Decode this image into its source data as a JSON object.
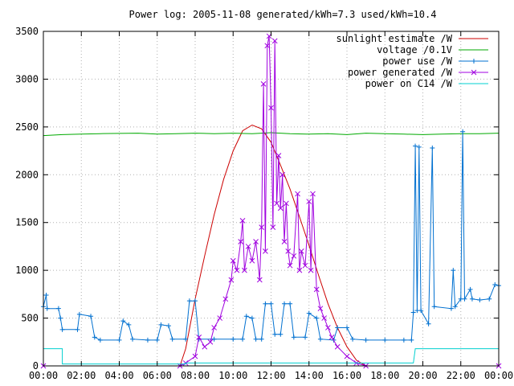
{
  "chart_data": {
    "type": "line",
    "title": "Power log: 2005-11-08 generated/kWh=7.3 used/kWh=10.4",
    "x_axis": {
      "unit": "hours",
      "range": [
        0,
        24
      ],
      "ticks": [
        0,
        2,
        4,
        6,
        8,
        10,
        12,
        14,
        16,
        18,
        20,
        22,
        24
      ],
      "tick_labels": [
        "00:00",
        "02:00",
        "04:00",
        "06:00",
        "08:00",
        "10:00",
        "12:00",
        "14:00",
        "16:00",
        "18:00",
        "20:00",
        "22:00",
        "00:00"
      ]
    },
    "y_axis": {
      "range": [
        0,
        3500
      ],
      "ticks": [
        0,
        500,
        1000,
        1500,
        2000,
        2500,
        3000,
        3500
      ],
      "tick_labels": [
        "0",
        "500",
        "1000",
        "1500",
        "2000",
        "2500",
        "3000",
        "3500"
      ]
    },
    "grid": true,
    "legend_position": "top-right",
    "series": [
      {
        "name": "sunlight estimate /W",
        "color": "#cc0000",
        "marker": "none",
        "points": [
          [
            7.2,
            0
          ],
          [
            7.5,
            180
          ],
          [
            8,
            700
          ],
          [
            8.5,
            1150
          ],
          [
            9,
            1580
          ],
          [
            9.5,
            1950
          ],
          [
            10,
            2250
          ],
          [
            10.5,
            2460
          ],
          [
            11,
            2520
          ],
          [
            11.5,
            2480
          ],
          [
            12,
            2340
          ],
          [
            12.5,
            2100
          ],
          [
            13,
            1850
          ],
          [
            13.5,
            1560
          ],
          [
            14,
            1260
          ],
          [
            14.5,
            950
          ],
          [
            15,
            650
          ],
          [
            15.5,
            400
          ],
          [
            16,
            200
          ],
          [
            16.5,
            60
          ],
          [
            17,
            0
          ]
        ]
      },
      {
        "name": "voltage /0.1V",
        "color": "#00aa00",
        "marker": "none",
        "points": [
          [
            0,
            2410
          ],
          [
            1,
            2420
          ],
          [
            2,
            2425
          ],
          [
            3,
            2430
          ],
          [
            4,
            2432
          ],
          [
            5,
            2435
          ],
          [
            6,
            2425
          ],
          [
            7,
            2430
          ],
          [
            8,
            2435
          ],
          [
            9,
            2430
          ],
          [
            10,
            2435
          ],
          [
            11,
            2430
          ],
          [
            12,
            2440
          ],
          [
            13,
            2430
          ],
          [
            14,
            2425
          ],
          [
            15,
            2430
          ],
          [
            16,
            2420
          ],
          [
            17,
            2435
          ],
          [
            18,
            2430
          ],
          [
            19,
            2425
          ],
          [
            20,
            2420
          ],
          [
            21,
            2425
          ],
          [
            22,
            2430
          ],
          [
            23,
            2430
          ],
          [
            24,
            2435
          ]
        ]
      },
      {
        "name": "power use /W",
        "color": "#0070d0",
        "marker": "plus",
        "points": [
          [
            0,
            620
          ],
          [
            0.15,
            740
          ],
          [
            0.2,
            600
          ],
          [
            0.8,
            600
          ],
          [
            0.9,
            500
          ],
          [
            1,
            380
          ],
          [
            1.8,
            380
          ],
          [
            1.9,
            540
          ],
          [
            2.5,
            520
          ],
          [
            2.7,
            300
          ],
          [
            3,
            270
          ],
          [
            4,
            270
          ],
          [
            4.2,
            470
          ],
          [
            4.5,
            430
          ],
          [
            4.7,
            280
          ],
          [
            5.5,
            270
          ],
          [
            6,
            270
          ],
          [
            6.2,
            430
          ],
          [
            6.6,
            420
          ],
          [
            6.8,
            280
          ],
          [
            7.5,
            280
          ],
          [
            7.7,
            680
          ],
          [
            8,
            680
          ],
          [
            8.2,
            280
          ],
          [
            9,
            280
          ],
          [
            10,
            280
          ],
          [
            10.5,
            280
          ],
          [
            10.7,
            520
          ],
          [
            11,
            500
          ],
          [
            11.2,
            280
          ],
          [
            11.5,
            280
          ],
          [
            11.7,
            650
          ],
          [
            12,
            650
          ],
          [
            12.2,
            330
          ],
          [
            12.5,
            330
          ],
          [
            12.7,
            650
          ],
          [
            13,
            650
          ],
          [
            13.2,
            300
          ],
          [
            13.8,
            300
          ],
          [
            14,
            550
          ],
          [
            14.4,
            500
          ],
          [
            14.6,
            280
          ],
          [
            15.3,
            270
          ],
          [
            15.5,
            400
          ],
          [
            16,
            400
          ],
          [
            16.3,
            280
          ],
          [
            17,
            270
          ],
          [
            18,
            270
          ],
          [
            19,
            270
          ],
          [
            19.4,
            270
          ],
          [
            19.5,
            560
          ],
          [
            19.6,
            2300
          ],
          [
            19.7,
            580
          ],
          [
            19.8,
            2290
          ],
          [
            19.9,
            580
          ],
          [
            20.3,
            440
          ],
          [
            20.5,
            2280
          ],
          [
            20.6,
            620
          ],
          [
            21.5,
            600
          ],
          [
            21.6,
            1000
          ],
          [
            21.7,
            620
          ],
          [
            22,
            700
          ],
          [
            22.1,
            2450
          ],
          [
            22.2,
            700
          ],
          [
            22.5,
            800
          ],
          [
            22.6,
            700
          ],
          [
            23,
            690
          ],
          [
            23.5,
            700
          ],
          [
            23.8,
            850
          ],
          [
            24,
            840
          ]
        ]
      },
      {
        "name": "power generated /W",
        "color": "#a000e0",
        "marker": "x",
        "points": [
          [
            0,
            0
          ],
          [
            7.2,
            0
          ],
          [
            7.5,
            30
          ],
          [
            8,
            100
          ],
          [
            8.2,
            300
          ],
          [
            8.5,
            200
          ],
          [
            8.8,
            250
          ],
          [
            9,
            400
          ],
          [
            9.3,
            500
          ],
          [
            9.6,
            700
          ],
          [
            9.9,
            900
          ],
          [
            10,
            1100
          ],
          [
            10.2,
            1000
          ],
          [
            10.4,
            1300
          ],
          [
            10.5,
            1520
          ],
          [
            10.6,
            1000
          ],
          [
            10.8,
            1250
          ],
          [
            11,
            1100
          ],
          [
            11.2,
            1300
          ],
          [
            11.4,
            900
          ],
          [
            11.5,
            1450
          ],
          [
            11.6,
            2950
          ],
          [
            11.7,
            1200
          ],
          [
            11.8,
            3350
          ],
          [
            11.9,
            3450
          ],
          [
            12,
            2700
          ],
          [
            12.1,
            1450
          ],
          [
            12.2,
            3400
          ],
          [
            12.3,
            1700
          ],
          [
            12.4,
            2200
          ],
          [
            12.5,
            1650
          ],
          [
            12.6,
            2000
          ],
          [
            12.7,
            1300
          ],
          [
            12.8,
            1700
          ],
          [
            12.9,
            1200
          ],
          [
            13,
            1050
          ],
          [
            13.2,
            1150
          ],
          [
            13.4,
            1800
          ],
          [
            13.5,
            1000
          ],
          [
            13.6,
            1200
          ],
          [
            13.8,
            1050
          ],
          [
            14,
            1720
          ],
          [
            14.1,
            1000
          ],
          [
            14.2,
            1800
          ],
          [
            14.4,
            800
          ],
          [
            14.6,
            600
          ],
          [
            14.8,
            500
          ],
          [
            15,
            400
          ],
          [
            15.2,
            300
          ],
          [
            15.5,
            200
          ],
          [
            16,
            100
          ],
          [
            16.5,
            30
          ],
          [
            17,
            0
          ],
          [
            24,
            0
          ]
        ]
      },
      {
        "name": "power on C14 /W",
        "color": "#00d0d0",
        "marker": "none",
        "points": [
          [
            0,
            180
          ],
          [
            1,
            180
          ],
          [
            1,
            20
          ],
          [
            7.5,
            20
          ],
          [
            7.5,
            30
          ],
          [
            19.5,
            30
          ],
          [
            19.6,
            180
          ],
          [
            24,
            180
          ]
        ]
      }
    ]
  }
}
